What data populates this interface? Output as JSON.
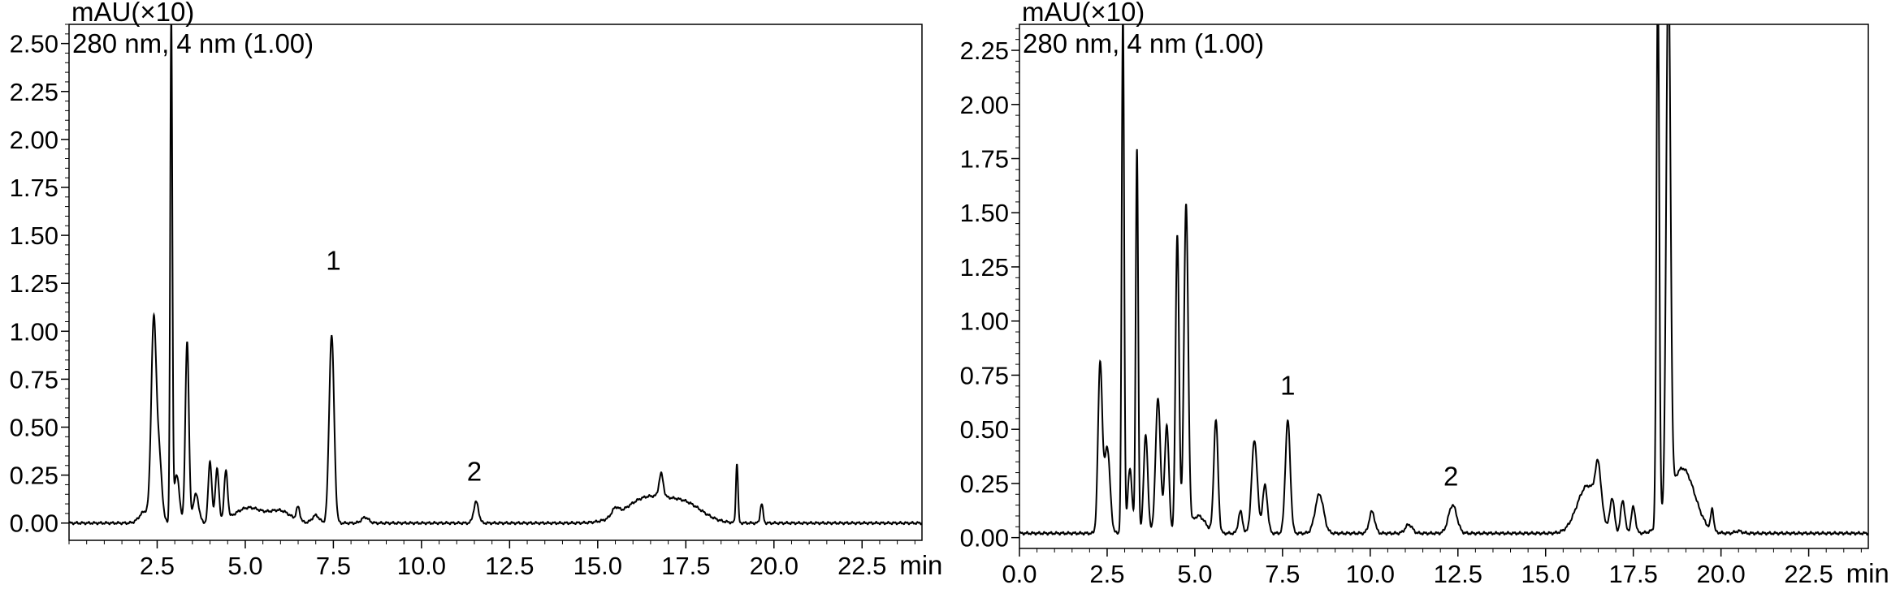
{
  "chart_data": [
    {
      "type": "line",
      "ylabel": "mAU(×10)",
      "detector_note": "280 nm, 4 nm (1.00)",
      "xunit": "min",
      "xlim": [
        0,
        24.2
      ],
      "ylim": [
        -0.09,
        2.6
      ],
      "xticks": [
        2.5,
        5.0,
        7.5,
        10.0,
        12.5,
        15.0,
        17.5,
        20.0,
        22.5
      ],
      "xtick_labels": [
        "2.5",
        "5.0",
        "7.5",
        "10.0",
        "12.5",
        "15.0",
        "17.5",
        "20.0",
        "22.5"
      ],
      "yticks": [
        0,
        0.25,
        0.5,
        0.75,
        1.0,
        1.25,
        1.5,
        1.75,
        2.0,
        2.25,
        2.5
      ],
      "ytick_labels": [
        "0.00",
        "0.25",
        "0.50",
        "0.75",
        "1.00",
        "1.25",
        "1.50",
        "1.75",
        "2.00",
        "2.25",
        "2.50"
      ],
      "grid": false,
      "baseline": 0.0,
      "peaks": [
        {
          "t": 2.15,
          "h": 0.06,
          "w": 0.15
        },
        {
          "t": 2.4,
          "h": 1.0,
          "w": 0.07
        },
        {
          "t": 2.55,
          "h": 0.35,
          "w": 0.08
        },
        {
          "t": 2.9,
          "h": 2.6,
          "w": 0.03
        },
        {
          "t": 3.05,
          "h": 0.25,
          "w": 0.08
        },
        {
          "t": 3.35,
          "h": 0.95,
          "w": 0.05
        },
        {
          "t": 3.6,
          "h": 0.15,
          "w": 0.08
        },
        {
          "t": 4.0,
          "h": 0.32,
          "w": 0.05
        },
        {
          "t": 4.2,
          "h": 0.28,
          "w": 0.05
        },
        {
          "t": 4.45,
          "h": 0.25,
          "w": 0.05
        },
        {
          "t": 5.1,
          "h": 0.08,
          "w": 0.4
        },
        {
          "t": 6.0,
          "h": 0.06,
          "w": 0.3
        },
        {
          "t": 6.5,
          "h": 0.07,
          "w": 0.05
        },
        {
          "t": 7.0,
          "h": 0.04,
          "w": 0.1
        },
        {
          "t": 7.45,
          "h": 0.98,
          "w": 0.07
        },
        {
          "t": 8.4,
          "h": 0.03,
          "w": 0.1
        },
        {
          "t": 11.55,
          "h": 0.11,
          "w": 0.07
        },
        {
          "t": 15.5,
          "h": 0.04,
          "w": 0.1
        },
        {
          "t": 16.4,
          "h": 0.13,
          "w": 0.6
        },
        {
          "t": 16.8,
          "h": 0.12,
          "w": 0.06
        },
        {
          "t": 17.5,
          "h": 0.09,
          "w": 0.5
        },
        {
          "t": 18.95,
          "h": 0.31,
          "w": 0.03
        },
        {
          "t": 19.65,
          "h": 0.1,
          "w": 0.04
        }
      ],
      "annotations": [
        {
          "text": "1",
          "x": 7.5,
          "y": 1.32
        },
        {
          "text": "2",
          "x": 11.5,
          "y": 0.22
        }
      ]
    },
    {
      "type": "line",
      "ylabel": "mAU(×10)",
      "detector_note": "280 nm, 4 nm (1.00)",
      "xunit": "min",
      "xlim": [
        0,
        24.2
      ],
      "ylim": [
        -0.05,
        2.37
      ],
      "xticks": [
        0.0,
        2.5,
        5.0,
        7.5,
        10.0,
        12.5,
        15.0,
        17.5,
        20.0,
        22.5
      ],
      "xtick_labels": [
        "0.0",
        "2.5",
        "5.0",
        "7.5",
        "10.0",
        "12.5",
        "15.0",
        "17.5",
        "20.0",
        "22.5"
      ],
      "yticks": [
        0,
        0.25,
        0.5,
        0.75,
        1.0,
        1.25,
        1.5,
        1.75,
        2.0,
        2.25
      ],
      "ytick_labels": [
        "0.00",
        "0.25",
        "0.50",
        "0.75",
        "1.00",
        "1.25",
        "1.50",
        "1.75",
        "2.00",
        "2.25"
      ],
      "grid": false,
      "baseline": 0.02,
      "peaks": [
        {
          "t": 2.3,
          "h": 0.78,
          "w": 0.06
        },
        {
          "t": 2.5,
          "h": 0.4,
          "w": 0.08
        },
        {
          "t": 2.95,
          "h": 2.4,
          "w": 0.035
        },
        {
          "t": 3.15,
          "h": 0.3,
          "w": 0.06
        },
        {
          "t": 3.35,
          "h": 1.78,
          "w": 0.035
        },
        {
          "t": 3.6,
          "h": 0.45,
          "w": 0.06
        },
        {
          "t": 3.95,
          "h": 0.62,
          "w": 0.07
        },
        {
          "t": 4.2,
          "h": 0.5,
          "w": 0.06
        },
        {
          "t": 4.5,
          "h": 1.38,
          "w": 0.05
        },
        {
          "t": 4.75,
          "h": 1.5,
          "w": 0.06
        },
        {
          "t": 5.1,
          "h": 0.08,
          "w": 0.2
        },
        {
          "t": 5.6,
          "h": 0.52,
          "w": 0.06
        },
        {
          "t": 6.3,
          "h": 0.1,
          "w": 0.06
        },
        {
          "t": 6.7,
          "h": 0.43,
          "w": 0.08
        },
        {
          "t": 7.0,
          "h": 0.22,
          "w": 0.07
        },
        {
          "t": 7.65,
          "h": 0.52,
          "w": 0.07
        },
        {
          "t": 8.55,
          "h": 0.18,
          "w": 0.12
        },
        {
          "t": 10.05,
          "h": 0.1,
          "w": 0.08
        },
        {
          "t": 11.1,
          "h": 0.04,
          "w": 0.1
        },
        {
          "t": 12.35,
          "h": 0.13,
          "w": 0.12
        },
        {
          "t": 16.2,
          "h": 0.22,
          "w": 0.3
        },
        {
          "t": 16.5,
          "h": 0.2,
          "w": 0.08
        },
        {
          "t": 16.9,
          "h": 0.15,
          "w": 0.06
        },
        {
          "t": 17.2,
          "h": 0.15,
          "w": 0.06
        },
        {
          "t": 17.5,
          "h": 0.12,
          "w": 0.06
        },
        {
          "t": 18.2,
          "h": 2.5,
          "w": 0.04
        },
        {
          "t": 18.5,
          "h": 2.5,
          "w": 0.06
        },
        {
          "t": 18.9,
          "h": 0.3,
          "w": 0.35
        },
        {
          "t": 19.75,
          "h": 0.1,
          "w": 0.04
        },
        {
          "t": 20.5,
          "h": 0.01,
          "w": 0.1
        }
      ],
      "annotations": [
        {
          "text": "1",
          "x": 7.65,
          "y": 0.66
        },
        {
          "text": "2",
          "x": 12.3,
          "y": 0.24
        }
      ]
    }
  ]
}
